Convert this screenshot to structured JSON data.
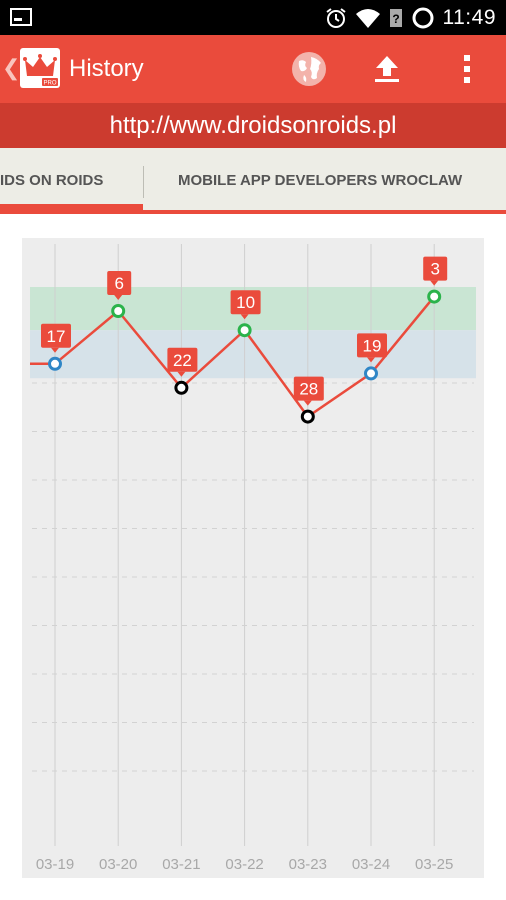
{
  "status_bar": {
    "time": "11:49",
    "icons": [
      "screenshot-icon",
      "alarm-icon",
      "wifi-icon",
      "no-sim-icon",
      "battery-icon"
    ]
  },
  "app_bar": {
    "title": "History",
    "logo_badge": "PRO",
    "actions": [
      "globe-icon",
      "upload-icon",
      "overflow-menu-icon"
    ]
  },
  "url_bar": {
    "url": "http://www.droidsonroids.pl"
  },
  "tabs": [
    {
      "label": "IDS ON ROIDS",
      "selected": true
    },
    {
      "label": "MOBILE APP DEVELOPERS WROCLAW",
      "selected": false
    }
  ],
  "colors": {
    "accent": "#ea4b3c",
    "accent_dark": "#cc3b2f",
    "top_band": "#c9e5d3",
    "mid_band": "#d6e2e9",
    "rank_top": "#2bb34b",
    "rank_mid": "#2f86c6",
    "rank_low": "#000000"
  },
  "chart_data": {
    "type": "line",
    "categories": [
      "03-19",
      "03-20",
      "03-21",
      "03-22",
      "03-23",
      "03-24",
      "03-25"
    ],
    "values": [
      17,
      6,
      22,
      10,
      28,
      19,
      3
    ],
    "labels": [
      "17",
      "6",
      "22",
      "10",
      "28",
      "19",
      "3"
    ],
    "point_tiers": [
      "mid",
      "top",
      "low",
      "top",
      "low",
      "mid",
      "top"
    ],
    "y_axis_inverted": true,
    "bands": [
      {
        "name": "top",
        "from": 1,
        "to": 10
      },
      {
        "name": "mid",
        "from": 10,
        "to": 20
      }
    ],
    "ylim": [
      1,
      100
    ],
    "grid": true
  }
}
